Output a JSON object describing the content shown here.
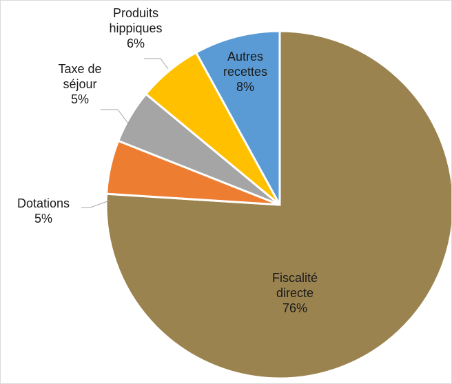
{
  "chart_data": {
    "type": "pie",
    "title": "",
    "start_angle_deg": 0,
    "direction": "clockwise",
    "slices": [
      {
        "category": "Fiscalité directe",
        "label_lines": [
          "Fiscalité",
          "directe"
        ],
        "percent_label": "76%",
        "value": 76,
        "color": "#9B8350"
      },
      {
        "category": "Dotations",
        "label_lines": [
          "Dotations"
        ],
        "percent_label": "5%",
        "value": 5,
        "color": "#ED7D31"
      },
      {
        "category": "Taxe de séjour",
        "label_lines": [
          "Taxe de",
          "séjour"
        ],
        "percent_label": "5%",
        "value": 5,
        "color": "#A5A5A5"
      },
      {
        "category": "Produits hippiques",
        "label_lines": [
          "Produits",
          "hippiques"
        ],
        "percent_label": "6%",
        "value": 6,
        "color": "#FFC000"
      },
      {
        "category": "Autres recettes",
        "label_lines": [
          "Autres",
          "recettes"
        ],
        "percent_label": "8%",
        "value": 8,
        "color": "#5B9BD5"
      }
    ],
    "legend": "none",
    "data_labels": "category-and-percent"
  }
}
